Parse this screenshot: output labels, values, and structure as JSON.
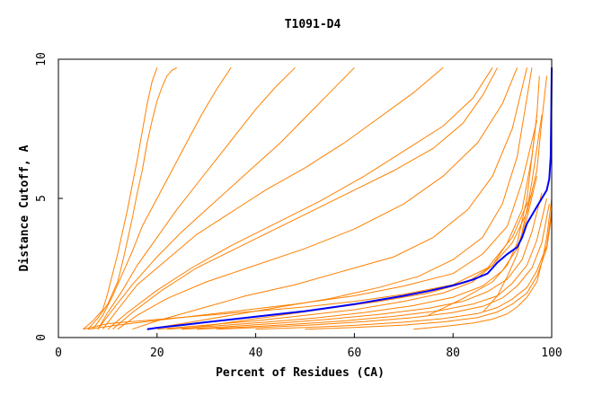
{
  "chart_data": {
    "type": "line",
    "title": "T1091-D4",
    "xlabel": "Percent of Residues (CA)",
    "ylabel": "Distance Cutoff, A",
    "xlim": [
      0,
      100
    ],
    "ylim": [
      0,
      10
    ],
    "xticks": [
      0,
      20,
      40,
      60,
      80,
      100
    ],
    "yticks": [
      0,
      5,
      10
    ],
    "colors": {
      "background_models": "#ff8000",
      "highlight": "#0000ff",
      "axes": "#000000"
    },
    "highlight_series": {
      "x": [
        18,
        20,
        25,
        30,
        35,
        40,
        45,
        50,
        55,
        60,
        65,
        70,
        75,
        80,
        84,
        87,
        89,
        91,
        93,
        94,
        95,
        96,
        97,
        98,
        99,
        99.5,
        99.8,
        99.9,
        100
      ],
      "y": [
        0.3,
        0.35,
        0.45,
        0.55,
        0.65,
        0.75,
        0.85,
        0.95,
        1.07,
        1.2,
        1.35,
        1.5,
        1.67,
        1.87,
        2.08,
        2.3,
        2.7,
        3.0,
        3.25,
        3.6,
        4.1,
        4.4,
        4.7,
        5.0,
        5.3,
        5.7,
        6.5,
        8.0,
        9.7
      ]
    },
    "background_series": [
      {
        "x": [
          5,
          7,
          9,
          10,
          11,
          12,
          13,
          14,
          15,
          16,
          17,
          18,
          19,
          20
        ],
        "y": [
          0.3,
          0.6,
          1.0,
          1.6,
          2.3,
          3.0,
          3.8,
          4.6,
          5.5,
          6.4,
          7.4,
          8.4,
          9.2,
          9.7
        ]
      },
      {
        "x": [
          6,
          8,
          10,
          12,
          13,
          14,
          15,
          16,
          17,
          18,
          19,
          20,
          21,
          22,
          23,
          24
        ],
        "y": [
          0.3,
          0.7,
          1.2,
          2.0,
          2.7,
          3.5,
          4.3,
          5.2,
          6.0,
          7.0,
          7.8,
          8.5,
          9.0,
          9.4,
          9.6,
          9.7
        ]
      },
      {
        "x": [
          7,
          9,
          11,
          13,
          15,
          17,
          20,
          23,
          26,
          29,
          32,
          35
        ],
        "y": [
          0.3,
          0.8,
          1.5,
          2.3,
          3.1,
          4.0,
          5.0,
          6.0,
          7.0,
          8.0,
          8.9,
          9.7
        ]
      },
      {
        "x": [
          8,
          10,
          13,
          16,
          20,
          24,
          28,
          32,
          36,
          40,
          44,
          48
        ],
        "y": [
          0.3,
          0.9,
          1.7,
          2.6,
          3.6,
          4.6,
          5.5,
          6.4,
          7.3,
          8.2,
          9.0,
          9.7
        ]
      },
      {
        "x": [
          8,
          11,
          15,
          20,
          25,
          30,
          35,
          40,
          45,
          50,
          55,
          60
        ],
        "y": [
          0.3,
          1.0,
          1.9,
          2.9,
          3.8,
          4.6,
          5.4,
          6.2,
          7.0,
          7.9,
          8.8,
          9.7
        ]
      },
      {
        "x": [
          9,
          12,
          16,
          22,
          28,
          35,
          42,
          50,
          58,
          65,
          72,
          78
        ],
        "y": [
          0.3,
          1.0,
          1.9,
          2.8,
          3.7,
          4.5,
          5.3,
          6.1,
          7.0,
          7.9,
          8.8,
          9.7
        ]
      },
      {
        "x": [
          10,
          14,
          20,
          27,
          35,
          44,
          53,
          62,
          70,
          78,
          84,
          88
        ],
        "y": [
          0.3,
          0.9,
          1.7,
          2.5,
          3.3,
          4.1,
          4.9,
          5.8,
          6.7,
          7.6,
          8.6,
          9.7
        ]
      },
      {
        "x": [
          12,
          16,
          22,
          30,
          40,
          50,
          60,
          70,
          78,
          85,
          90,
          93
        ],
        "y": [
          0.3,
          0.8,
          1.4,
          2.0,
          2.6,
          3.2,
          3.9,
          4.8,
          5.8,
          7.0,
          8.4,
          9.7
        ]
      },
      {
        "x": [
          15,
          20,
          28,
          38,
          48,
          58,
          68,
          76,
          83,
          88,
          92,
          95
        ],
        "y": [
          0.3,
          0.6,
          1.0,
          1.5,
          1.9,
          2.4,
          2.9,
          3.6,
          4.6,
          5.8,
          7.5,
          9.7
        ]
      },
      {
        "x": [
          18,
          25,
          35,
          45,
          55,
          65,
          73,
          80,
          86,
          90,
          93,
          96
        ],
        "y": [
          0.3,
          0.5,
          0.8,
          1.1,
          1.4,
          1.8,
          2.2,
          2.8,
          3.6,
          4.8,
          6.5,
          9.7
        ]
      },
      {
        "x": [
          20,
          30,
          40,
          50,
          60,
          70,
          78,
          84,
          88,
          91,
          94,
          96,
          97
        ],
        "y": [
          0.3,
          0.45,
          0.6,
          0.8,
          1.0,
          1.3,
          1.6,
          2.0,
          2.6,
          3.4,
          4.6,
          6.5,
          8.0
        ]
      },
      {
        "x": [
          22,
          32,
          42,
          52,
          62,
          72,
          80,
          86,
          90,
          93,
          95,
          97
        ],
        "y": [
          0.3,
          0.42,
          0.55,
          0.7,
          0.9,
          1.15,
          1.45,
          1.85,
          2.4,
          3.2,
          4.3,
          5.8
        ]
      },
      {
        "x": [
          25,
          35,
          45,
          55,
          65,
          75,
          82,
          87,
          91,
          94,
          96,
          98
        ],
        "y": [
          0.3,
          0.4,
          0.52,
          0.66,
          0.83,
          1.05,
          1.3,
          1.65,
          2.1,
          2.8,
          3.8,
          5.2
        ]
      },
      {
        "x": [
          28,
          38,
          48,
          58,
          68,
          77,
          84,
          89,
          92,
          95,
          97,
          99
        ],
        "y": [
          0.3,
          0.38,
          0.48,
          0.6,
          0.76,
          0.96,
          1.2,
          1.5,
          1.95,
          2.6,
          3.5,
          5.0
        ]
      },
      {
        "x": [
          32,
          42,
          52,
          62,
          72,
          80,
          86,
          90,
          93,
          96,
          98,
          99.5
        ],
        "y": [
          0.3,
          0.37,
          0.46,
          0.57,
          0.72,
          0.9,
          1.12,
          1.42,
          1.85,
          2.5,
          3.4,
          4.8
        ]
      },
      {
        "x": [
          40,
          50,
          60,
          70,
          78,
          85,
          89,
          92,
          95,
          97,
          99,
          100
        ],
        "y": [
          0.3,
          0.36,
          0.44,
          0.55,
          0.68,
          0.86,
          1.08,
          1.38,
          1.8,
          2.4,
          3.3,
          4.6
        ]
      },
      {
        "x": [
          50,
          60,
          70,
          78,
          85,
          89,
          92,
          95,
          97,
          99,
          100
        ],
        "y": [
          0.3,
          0.36,
          0.45,
          0.56,
          0.72,
          0.92,
          1.2,
          1.6,
          2.2,
          3.2,
          4.4
        ]
      },
      {
        "x": [
          72,
          78,
          84,
          88,
          91,
          93,
          95,
          97,
          98,
          99,
          100
        ],
        "y": [
          0.3,
          0.4,
          0.52,
          0.66,
          0.85,
          1.1,
          1.45,
          2.0,
          2.7,
          3.6,
          5.0
        ]
      },
      {
        "x": [
          5,
          10,
          20,
          30,
          40,
          50,
          60,
          70,
          80,
          87,
          92,
          96
        ],
        "y": [
          0.3,
          0.5,
          0.65,
          0.8,
          0.95,
          1.1,
          1.3,
          1.55,
          1.9,
          2.5,
          3.6,
          5.2
        ]
      },
      {
        "x": [
          6,
          12,
          24,
          36,
          48,
          60,
          70,
          80,
          86,
          91,
          94,
          97
        ],
        "y": [
          0.3,
          0.45,
          0.7,
          0.95,
          1.2,
          1.5,
          1.85,
          2.3,
          3.0,
          4.0,
          5.6,
          7.8
        ]
      },
      {
        "x": [
          11,
          15,
          21,
          28,
          36,
          44,
          52,
          60,
          68,
          76,
          82,
          86,
          89
        ],
        "y": [
          0.3,
          0.9,
          1.7,
          2.5,
          3.2,
          3.9,
          4.6,
          5.3,
          6.0,
          6.8,
          7.7,
          8.7,
          9.7
        ]
      },
      {
        "x": [
          25,
          35,
          45,
          55,
          65,
          75,
          83,
          88,
          92,
          95,
          97,
          98,
          99
        ],
        "y": [
          0.3,
          0.55,
          0.8,
          1.05,
          1.3,
          1.6,
          2.0,
          2.6,
          3.4,
          4.5,
          6.0,
          7.8,
          9.4
        ]
      },
      {
        "x": [
          75,
          82,
          88,
          91,
          93,
          94,
          95,
          96,
          97,
          97.5
        ],
        "y": [
          0.8,
          1.4,
          2.0,
          2.6,
          3.4,
          4.2,
          5.0,
          6.5,
          8.0,
          9.4
        ]
      },
      {
        "x": [
          86,
          89,
          91,
          93,
          94,
          95,
          96,
          97,
          98
        ],
        "y": [
          0.9,
          1.5,
          2.2,
          3.0,
          3.8,
          4.6,
          5.6,
          6.8,
          8.0
        ]
      }
    ]
  }
}
